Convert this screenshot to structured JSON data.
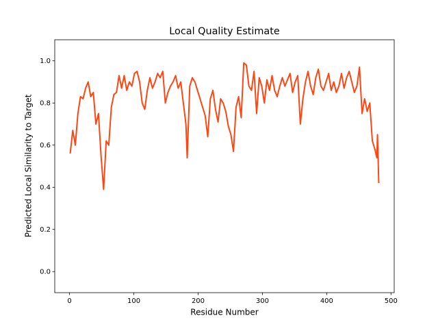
{
  "chart_data": {
    "type": "line",
    "title": "Local Quality Estimate",
    "x_label": "Residue Number",
    "y_label": "Predicted Local Similarity to Target",
    "x": [
      1,
      5,
      9,
      13,
      17,
      21,
      25,
      29,
      33,
      37,
      41,
      45,
      49,
      53,
      57,
      61,
      65,
      69,
      73,
      77,
      81,
      85,
      89,
      93,
      97,
      101,
      105,
      109,
      113,
      117,
      121,
      125,
      129,
      133,
      137,
      141,
      145,
      149,
      153,
      157,
      161,
      165,
      169,
      173,
      177,
      181,
      183,
      187,
      191,
      195,
      199,
      203,
      207,
      211,
      215,
      219,
      223,
      227,
      231,
      235,
      239,
      243,
      247,
      251,
      255,
      259,
      263,
      267,
      271,
      275,
      279,
      283,
      287,
      291,
      295,
      299,
      303,
      307,
      311,
      315,
      319,
      323,
      327,
      331,
      335,
      339,
      343,
      347,
      351,
      355,
      359,
      363,
      367,
      371,
      375,
      379,
      383,
      387,
      391,
      395,
      399,
      403,
      407,
      411,
      415,
      419,
      423,
      427,
      431,
      435,
      439,
      443,
      447,
      451,
      455,
      459,
      463,
      467,
      471,
      475,
      478,
      479,
      481
    ],
    "series": [
      {
        "color": "#ff4511",
        "values": [
          0.56,
          0.67,
          0.6,
          0.75,
          0.83,
          0.82,
          0.87,
          0.9,
          0.83,
          0.85,
          0.7,
          0.75,
          0.55,
          0.39,
          0.62,
          0.6,
          0.78,
          0.84,
          0.85,
          0.93,
          0.87,
          0.93,
          0.86,
          0.9,
          0.88,
          0.94,
          0.95,
          0.9,
          0.8,
          0.77,
          0.86,
          0.92,
          0.87,
          0.9,
          0.94,
          0.92,
          0.95,
          0.8,
          0.85,
          0.88,
          0.9,
          0.93,
          0.87,
          0.9,
          0.8,
          0.7,
          0.54,
          0.88,
          0.92,
          0.9,
          0.86,
          0.82,
          0.78,
          0.74,
          0.64,
          0.82,
          0.86,
          0.77,
          0.71,
          0.82,
          0.8,
          0.76,
          0.69,
          0.65,
          0.57,
          0.78,
          0.83,
          0.73,
          0.99,
          0.98,
          0.88,
          0.86,
          0.95,
          0.75,
          0.92,
          0.88,
          0.8,
          0.91,
          0.86,
          0.93,
          0.86,
          0.83,
          0.88,
          0.92,
          0.88,
          0.91,
          0.94,
          0.85,
          0.9,
          0.93,
          0.7,
          0.82,
          0.9,
          0.95,
          0.88,
          0.84,
          0.92,
          0.96,
          0.88,
          0.86,
          0.9,
          0.94,
          0.86,
          0.9,
          0.85,
          0.88,
          0.94,
          0.87,
          0.92,
          0.95,
          0.9,
          0.85,
          0.88,
          0.97,
          0.75,
          0.82,
          0.76,
          0.8,
          0.62,
          0.58,
          0.54,
          0.65,
          0.42
        ]
      }
    ],
    "xlim": [
      -23,
      505
    ],
    "ylim": [
      -0.1,
      1.1
    ],
    "xticks": [
      0,
      100,
      200,
      300,
      400,
      500
    ],
    "yticks": [
      {
        "value": 0,
        "label": "0.0"
      },
      0.2,
      0.4,
      0.6,
      0.8,
      {
        "value": 1,
        "label": "1.0"
      }
    ]
  }
}
